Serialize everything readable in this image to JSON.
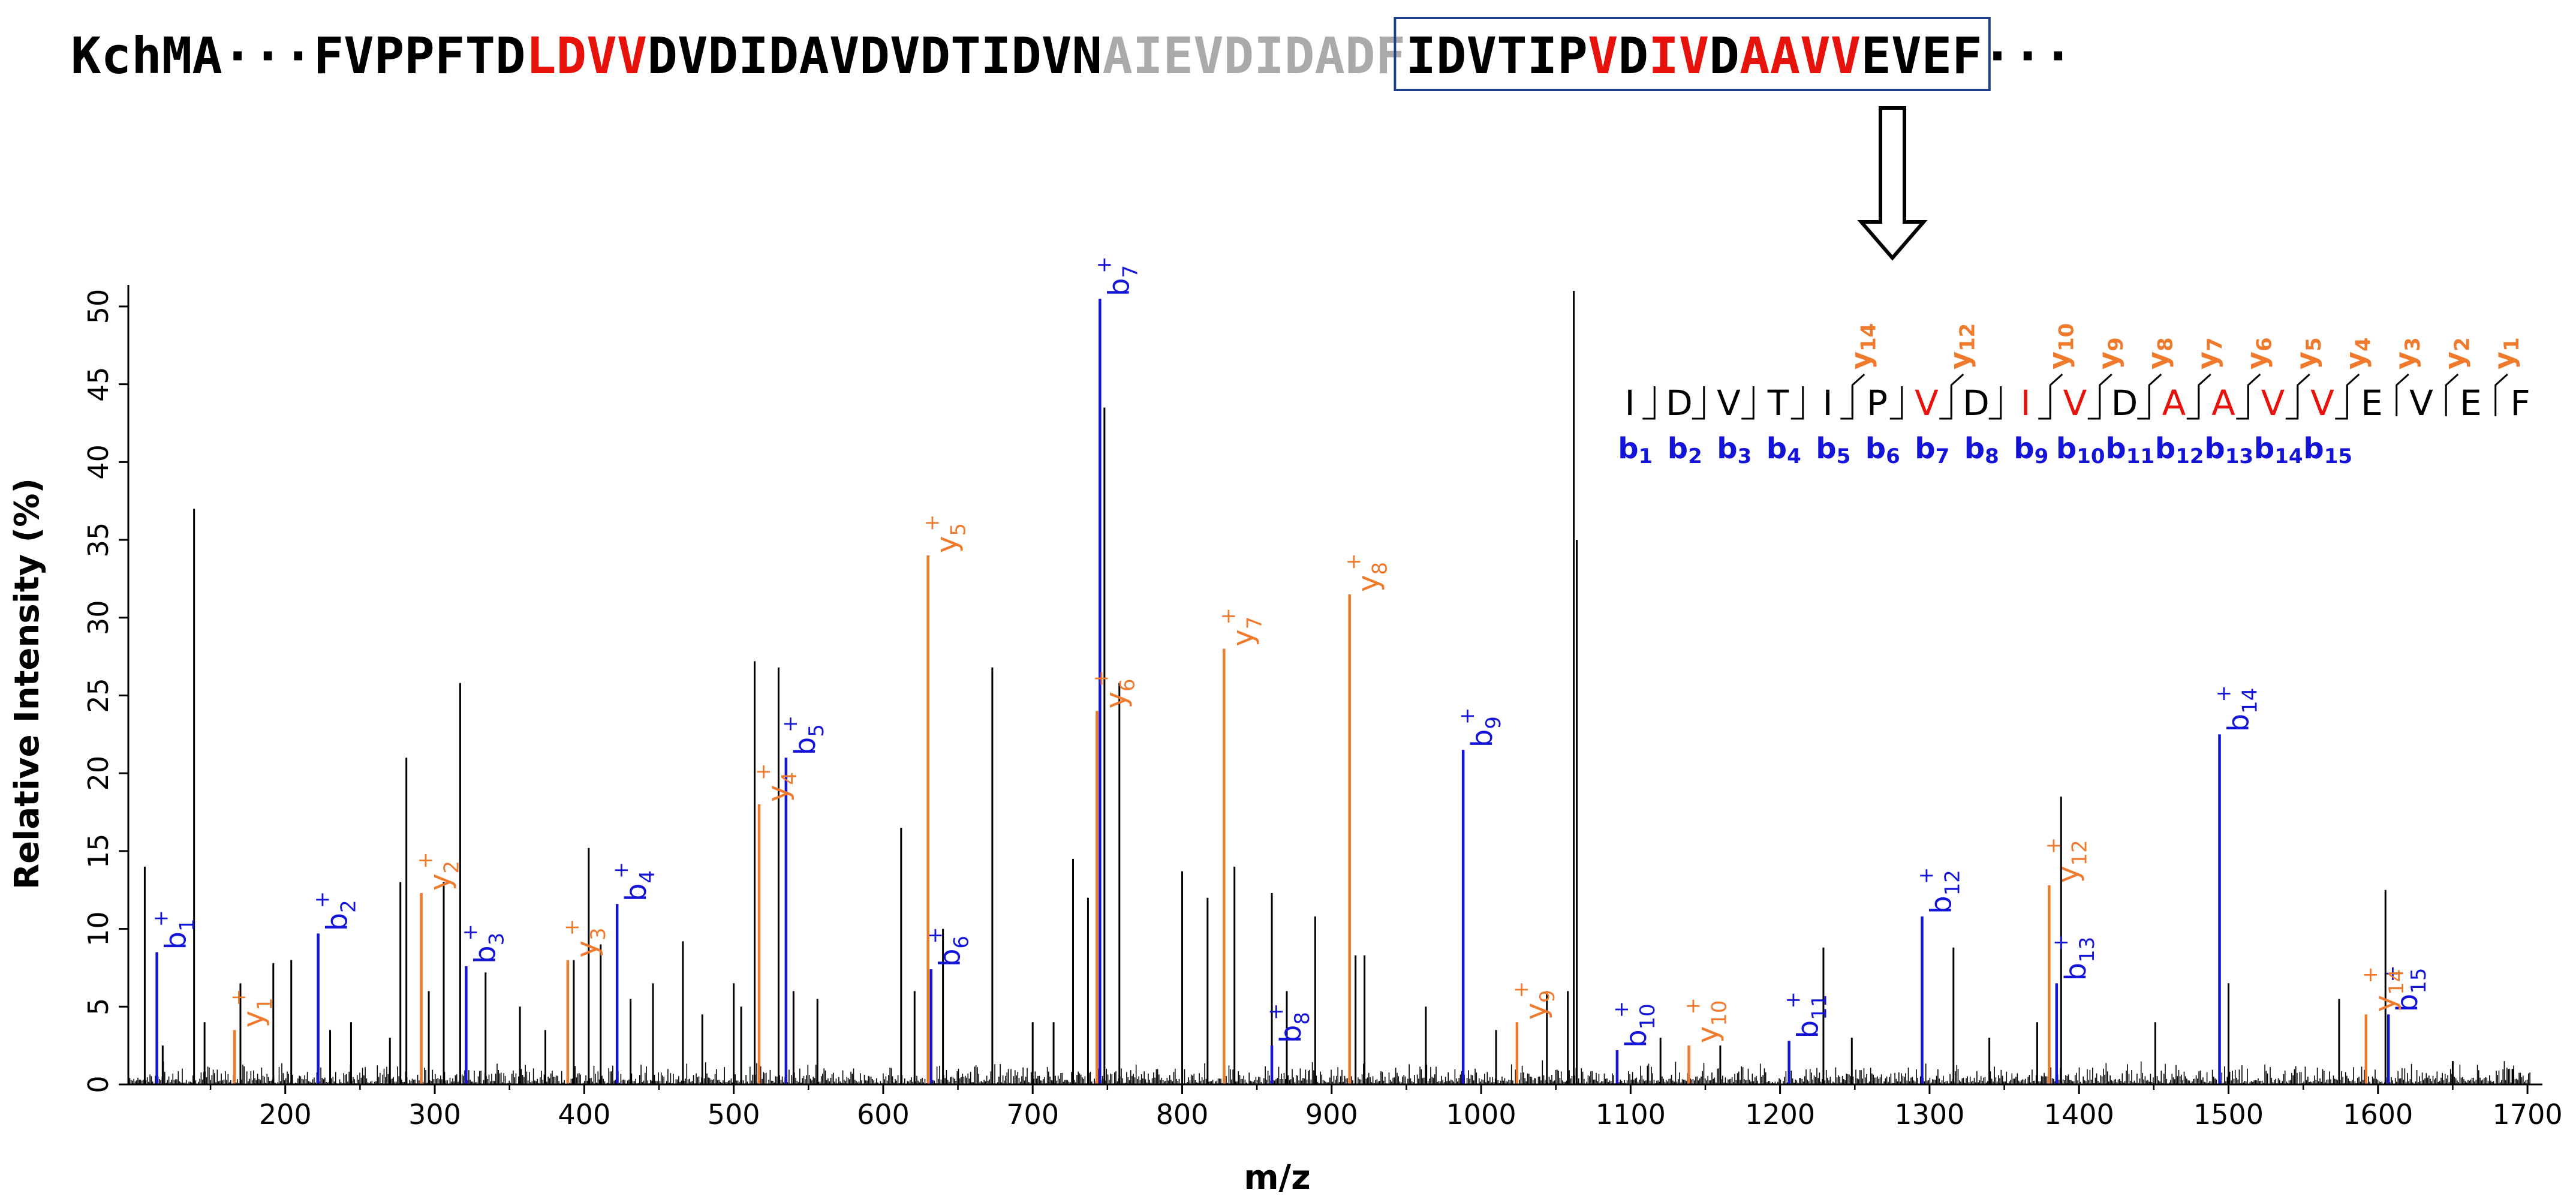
{
  "header": {
    "segments": [
      {
        "text": "KchMA···FVPPFTD",
        "style": "black"
      },
      {
        "text": "LDVV",
        "style": "red"
      },
      {
        "text": "DVDIDAVDVDTIDVN",
        "style": "black"
      },
      {
        "text": "AIEVDIDADF",
        "style": "gray"
      },
      {
        "text": "IDVTIP",
        "style": "black",
        "boxed": true
      },
      {
        "text": "V",
        "style": "red",
        "boxed": true
      },
      {
        "text": "D",
        "style": "black",
        "boxed": true
      },
      {
        "text": "IV",
        "style": "red",
        "boxed": true
      },
      {
        "text": "D",
        "style": "black",
        "boxed": true
      },
      {
        "text": "AAVV",
        "style": "red",
        "boxed": true
      },
      {
        "text": "EVEF",
        "style": "black",
        "boxed": true
      },
      {
        "text": "···",
        "style": "black"
      }
    ]
  },
  "colors": {
    "black": "#000000",
    "red": "#e8120c",
    "gray": "#aaaaaa",
    "b_ion": "#1414d8",
    "y_ion": "#f07a2c",
    "box": "#1f3f8a"
  },
  "fragment_map": {
    "residues": [
      "I",
      "D",
      "V",
      "T",
      "I",
      "P",
      "V",
      "D",
      "I",
      "V",
      "D",
      "A",
      "A",
      "V",
      "V",
      "E",
      "V",
      "E",
      "F"
    ],
    "red_indices": [
      6,
      8,
      9,
      11,
      12,
      13,
      14
    ],
    "b_labels": [
      {
        "after": 1,
        "main": "b",
        "sub": "1"
      },
      {
        "after": 2,
        "main": "b",
        "sub": "2"
      },
      {
        "after": 3,
        "main": "b",
        "sub": "3"
      },
      {
        "after": 4,
        "main": "b",
        "sub": "4"
      },
      {
        "after": 5,
        "main": "b",
        "sub": "5"
      },
      {
        "after": 6,
        "main": "b",
        "sub": "6"
      },
      {
        "after": 7,
        "main": "b",
        "sub": "7"
      },
      {
        "after": 8,
        "main": "b",
        "sub": "8"
      },
      {
        "after": 9,
        "main": "b",
        "sub": "9"
      },
      {
        "after": 10,
        "main": "b",
        "sub": "10"
      },
      {
        "after": 11,
        "main": "b",
        "sub": "11"
      },
      {
        "after": 12,
        "main": "b",
        "sub": "12"
      },
      {
        "after": 13,
        "main": "b",
        "sub": "13"
      },
      {
        "after": 14,
        "main": "b",
        "sub": "14"
      },
      {
        "after": 15,
        "main": "b",
        "sub": "15"
      }
    ],
    "y_labels": [
      {
        "after": 5,
        "main": "y",
        "sub": "14"
      },
      {
        "after": 7,
        "main": "y",
        "sub": "12"
      },
      {
        "after": 9,
        "main": "y",
        "sub": "10"
      },
      {
        "after": 10,
        "main": "y",
        "sub": "9"
      },
      {
        "after": 11,
        "main": "y",
        "sub": "8"
      },
      {
        "after": 12,
        "main": "y",
        "sub": "7"
      },
      {
        "after": 13,
        "main": "y",
        "sub": "6"
      },
      {
        "after": 14,
        "main": "y",
        "sub": "5"
      },
      {
        "after": 15,
        "main": "y",
        "sub": "4"
      },
      {
        "after": 16,
        "main": "y",
        "sub": "3"
      },
      {
        "after": 17,
        "main": "y",
        "sub": "2"
      },
      {
        "after": 18,
        "main": "y",
        "sub": "1"
      }
    ]
  },
  "chart_data": {
    "type": "bar",
    "xlabel": "m/z",
    "ylabel": "Relative  Intensity (%)",
    "xlim": [
      95,
      1710
    ],
    "ylim": [
      0,
      51
    ],
    "xticks": [
      200,
      300,
      400,
      500,
      600,
      700,
      800,
      900,
      1000,
      1100,
      1200,
      1300,
      1400,
      1500,
      1600,
      1700
    ],
    "yticks": [
      0,
      5,
      10,
      15,
      20,
      25,
      30,
      35,
      40,
      45,
      50
    ],
    "annotated_peaks": [
      {
        "ion": "b",
        "n": "1",
        "mz": 114.1,
        "intensity": 8.5
      },
      {
        "ion": "b",
        "n": "2",
        "mz": 222,
        "intensity": 9.7
      },
      {
        "ion": "b",
        "n": "3",
        "mz": 321,
        "intensity": 7.6
      },
      {
        "ion": "b",
        "n": "4",
        "mz": 422,
        "intensity": 11.6
      },
      {
        "ion": "b",
        "n": "5",
        "mz": 535,
        "intensity": 21.0
      },
      {
        "ion": "b",
        "n": "6",
        "mz": 632,
        "intensity": 7.4
      },
      {
        "ion": "b",
        "n": "7",
        "mz": 745,
        "intensity": 50.5
      },
      {
        "ion": "b",
        "n": "8",
        "mz": 860,
        "intensity": 2.5
      },
      {
        "ion": "b",
        "n": "9",
        "mz": 988,
        "intensity": 21.5
      },
      {
        "ion": "b",
        "n": "10",
        "mz": 1091,
        "intensity": 2.2
      },
      {
        "ion": "b",
        "n": "11",
        "mz": 1206,
        "intensity": 2.8
      },
      {
        "ion": "b",
        "n": "12",
        "mz": 1295,
        "intensity": 10.8
      },
      {
        "ion": "b",
        "n": "13",
        "mz": 1385,
        "intensity": 6.5
      },
      {
        "ion": "b",
        "n": "14",
        "mz": 1494,
        "intensity": 22.5
      },
      {
        "ion": "b",
        "n": "15",
        "mz": 1607,
        "intensity": 4.5
      },
      {
        "ion": "y",
        "n": "1",
        "mz": 166,
        "intensity": 3.5
      },
      {
        "ion": "y",
        "n": "2",
        "mz": 291,
        "intensity": 12.3
      },
      {
        "ion": "y",
        "n": "3",
        "mz": 389,
        "intensity": 8.0
      },
      {
        "ion": "y",
        "n": "4",
        "mz": 517,
        "intensity": 18.0
      },
      {
        "ion": "y",
        "n": "5",
        "mz": 630,
        "intensity": 34.0
      },
      {
        "ion": "y",
        "n": "6",
        "mz": 743,
        "intensity": 24.0
      },
      {
        "ion": "y",
        "n": "7",
        "mz": 828,
        "intensity": 28.0
      },
      {
        "ion": "y",
        "n": "8",
        "mz": 912,
        "intensity": 31.5
      },
      {
        "ion": "y",
        "n": "9",
        "mz": 1024,
        "intensity": 4.0
      },
      {
        "ion": "y",
        "n": "10",
        "mz": 1139,
        "intensity": 2.5
      },
      {
        "ion": "y",
        "n": "12",
        "mz": 1380,
        "intensity": 12.8
      },
      {
        "ion": "y",
        "n": "14",
        "mz": 1592,
        "intensity": 4.5
      }
    ],
    "unannotated_peaks": [
      {
        "mz": 106,
        "intensity": 14.0
      },
      {
        "mz": 118,
        "intensity": 2.5
      },
      {
        "mz": 139,
        "intensity": 37.0
      },
      {
        "mz": 146,
        "intensity": 4.0
      },
      {
        "mz": 170,
        "intensity": 6.5
      },
      {
        "mz": 192,
        "intensity": 7.8
      },
      {
        "mz": 204,
        "intensity": 8.0
      },
      {
        "mz": 230,
        "intensity": 3.5
      },
      {
        "mz": 244,
        "intensity": 4.0
      },
      {
        "mz": 270,
        "intensity": 3.0
      },
      {
        "mz": 277,
        "intensity": 13.0
      },
      {
        "mz": 281,
        "intensity": 21.0
      },
      {
        "mz": 296,
        "intensity": 6.0
      },
      {
        "mz": 306,
        "intensity": 13.0
      },
      {
        "mz": 317,
        "intensity": 25.8
      },
      {
        "mz": 334,
        "intensity": 7.2
      },
      {
        "mz": 357,
        "intensity": 5.0
      },
      {
        "mz": 374,
        "intensity": 3.5
      },
      {
        "mz": 393,
        "intensity": 8.0
      },
      {
        "mz": 403,
        "intensity": 15.2
      },
      {
        "mz": 411,
        "intensity": 9.0
      },
      {
        "mz": 431,
        "intensity": 5.5
      },
      {
        "mz": 446,
        "intensity": 6.5
      },
      {
        "mz": 466,
        "intensity": 9.2
      },
      {
        "mz": 479,
        "intensity": 4.5
      },
      {
        "mz": 500,
        "intensity": 6.5
      },
      {
        "mz": 505,
        "intensity": 5.0
      },
      {
        "mz": 514,
        "intensity": 27.2
      },
      {
        "mz": 530,
        "intensity": 26.8
      },
      {
        "mz": 540,
        "intensity": 6.0
      },
      {
        "mz": 556,
        "intensity": 5.5
      },
      {
        "mz": 612,
        "intensity": 16.5
      },
      {
        "mz": 621,
        "intensity": 6.0
      },
      {
        "mz": 640,
        "intensity": 10.0
      },
      {
        "mz": 673,
        "intensity": 26.8
      },
      {
        "mz": 700,
        "intensity": 4.0
      },
      {
        "mz": 714,
        "intensity": 4.0
      },
      {
        "mz": 727,
        "intensity": 14.5
      },
      {
        "mz": 737,
        "intensity": 12.0
      },
      {
        "mz": 748,
        "intensity": 43.5
      },
      {
        "mz": 758,
        "intensity": 25.8
      },
      {
        "mz": 800,
        "intensity": 13.7
      },
      {
        "mz": 817,
        "intensity": 12.0
      },
      {
        "mz": 835,
        "intensity": 14.0
      },
      {
        "mz": 860,
        "intensity": 12.3
      },
      {
        "mz": 870,
        "intensity": 6.0
      },
      {
        "mz": 889,
        "intensity": 10.8
      },
      {
        "mz": 916,
        "intensity": 8.3
      },
      {
        "mz": 922,
        "intensity": 8.3
      },
      {
        "mz": 963,
        "intensity": 5.0
      },
      {
        "mz": 1010,
        "intensity": 3.5
      },
      {
        "mz": 1044,
        "intensity": 6.0
      },
      {
        "mz": 1058,
        "intensity": 6.0
      },
      {
        "mz": 1062,
        "intensity": 51.0
      },
      {
        "mz": 1064,
        "intensity": 35.0
      },
      {
        "mz": 1120,
        "intensity": 3.0
      },
      {
        "mz": 1160,
        "intensity": 2.5
      },
      {
        "mz": 1229,
        "intensity": 8.8
      },
      {
        "mz": 1248,
        "intensity": 3.0
      },
      {
        "mz": 1316,
        "intensity": 8.8
      },
      {
        "mz": 1340,
        "intensity": 3.0
      },
      {
        "mz": 1372,
        "intensity": 4.0
      },
      {
        "mz": 1388,
        "intensity": 18.5
      },
      {
        "mz": 1451,
        "intensity": 4.0
      },
      {
        "mz": 1500,
        "intensity": 6.5
      },
      {
        "mz": 1574,
        "intensity": 5.5
      },
      {
        "mz": 1605,
        "intensity": 12.5
      },
      {
        "mz": 1650,
        "intensity": 1.5
      },
      {
        "mz": 1690,
        "intensity": 1.0
      }
    ]
  }
}
